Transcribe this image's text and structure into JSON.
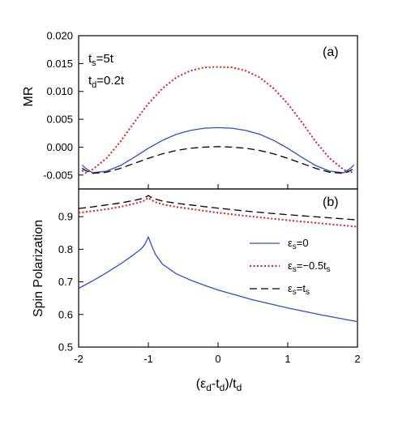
{
  "chart_data": [
    {
      "panel": "(a)",
      "type": "line",
      "ylabel": "MR",
      "xlim": [
        -2,
        2
      ],
      "ylim": [
        -0.0075,
        0.02
      ],
      "yticks": [
        "-0.005",
        "0.000",
        "0.005",
        "0.010",
        "0.015",
        "0.020"
      ],
      "annotations": [
        "t_s=5t",
        "t_d=0.2t"
      ],
      "x": [
        -1.95,
        -1.9,
        -1.8,
        -1.6,
        -1.4,
        -1.2,
        -1.0,
        -0.8,
        -0.6,
        -0.4,
        -0.2,
        0.0,
        0.2,
        0.4,
        0.6,
        0.8,
        1.0,
        1.2,
        1.4,
        1.6,
        1.8,
        1.9,
        1.95
      ],
      "series": [
        {
          "name": "ε_s=0",
          "color": "#2c4fd8",
          "dash": "solid",
          "values": [
            -0.0032,
            -0.0038,
            -0.0046,
            -0.0043,
            -0.0033,
            -0.0018,
            -0.0002,
            0.0012,
            0.0023,
            0.003,
            0.0034,
            0.0035,
            0.0034,
            0.003,
            0.0023,
            0.0012,
            -0.0002,
            -0.0018,
            -0.0033,
            -0.0043,
            -0.0046,
            -0.0038,
            -0.0032
          ]
        },
        {
          "name": "ε_s=−0.5t_s",
          "color": "#e02020",
          "dash": "dotted",
          "values": [
            -0.0042,
            -0.0046,
            -0.004,
            -0.002,
            0.001,
            0.0045,
            0.0078,
            0.0105,
            0.0125,
            0.0137,
            0.0143,
            0.0144,
            0.0143,
            0.0137,
            0.0125,
            0.0105,
            0.0078,
            0.0045,
            0.001,
            -0.002,
            -0.004,
            -0.0046,
            -0.0042
          ]
        },
        {
          "name": "ε_s=t_s",
          "color": "#000000",
          "dash": "dashed",
          "values": [
            -0.0038,
            -0.0042,
            -0.0047,
            -0.0045,
            -0.0038,
            -0.0029,
            -0.002,
            -0.0012,
            -0.0006,
            -0.0002,
            0.0,
            0.0001,
            0.0,
            -0.0002,
            -0.0006,
            -0.0012,
            -0.002,
            -0.0029,
            -0.0038,
            -0.0045,
            -0.0047,
            -0.0042,
            -0.0038
          ]
        }
      ]
    },
    {
      "panel": "(b)",
      "type": "line",
      "ylabel": "Spin Polarization",
      "xlabel": "(ε_d-t_d)/t_d",
      "xlim": [
        -2,
        2
      ],
      "ylim": [
        0.5,
        0.985
      ],
      "xticks": [
        "-2",
        "-1",
        "0",
        "1",
        "2"
      ],
      "yticks": [
        "0.5",
        "0.6",
        "0.7",
        "0.8",
        "0.9"
      ],
      "legend_position": "middle-right",
      "x": [
        -2.0,
        -1.8,
        -1.6,
        -1.4,
        -1.2,
        -1.1,
        -1.05,
        -1.0,
        -0.95,
        -0.9,
        -0.8,
        -0.6,
        -0.4,
        -0.2,
        0.0,
        0.5,
        1.0,
        1.5,
        2.0
      ],
      "series": [
        {
          "name": "ε_s=0",
          "color": "#2c4fd8",
          "dash": "solid",
          "values": [
            0.68,
            0.703,
            0.728,
            0.755,
            0.785,
            0.802,
            0.815,
            0.838,
            0.81,
            0.785,
            0.755,
            0.725,
            0.706,
            0.69,
            0.675,
            0.645,
            0.62,
            0.598,
            0.578
          ]
        },
        {
          "name": "ε_s=−0.5t_s",
          "color": "#e02020",
          "dash": "dotted",
          "values": [
            0.912,
            0.917,
            0.923,
            0.93,
            0.94,
            0.946,
            0.95,
            0.958,
            0.95,
            0.945,
            0.938,
            0.93,
            0.924,
            0.918,
            0.912,
            0.9,
            0.889,
            0.879,
            0.869
          ]
        },
        {
          "name": "ε_s=t_s",
          "color": "#000000",
          "dash": "dashed",
          "values": [
            0.925,
            0.93,
            0.936,
            0.942,
            0.95,
            0.955,
            0.958,
            0.965,
            0.958,
            0.954,
            0.948,
            0.941,
            0.936,
            0.931,
            0.926,
            0.915,
            0.906,
            0.898,
            0.89
          ]
        }
      ]
    }
  ]
}
